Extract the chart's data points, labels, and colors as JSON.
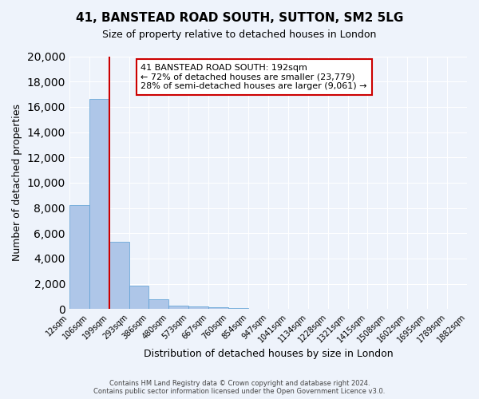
{
  "title": "41, BANSTEAD ROAD SOUTH, SUTTON, SM2 5LG",
  "subtitle": "Size of property relative to detached houses in London",
  "xlabel": "Distribution of detached houses by size in London",
  "ylabel": "Number of detached properties",
  "bar_values": [
    8200,
    16600,
    5300,
    1850,
    750,
    300,
    200,
    150,
    100,
    0,
    0,
    0,
    0,
    0,
    0,
    0,
    0,
    0,
    0,
    0
  ],
  "bar_labels": [
    "12sqm",
    "106sqm",
    "199sqm",
    "293sqm",
    "386sqm",
    "480sqm",
    "573sqm",
    "667sqm",
    "760sqm",
    "854sqm",
    "947sqm",
    "1041sqm",
    "1134sqm",
    "1228sqm",
    "1321sqm",
    "1415sqm",
    "1508sqm",
    "1602sqm",
    "1695sqm",
    "1789sqm",
    "1882sqm"
  ],
  "bar_color": "#aec6e8",
  "bar_edge_color": "#5a9fd4",
  "property_line_x": 2,
  "property_line_color": "#cc0000",
  "ylim": [
    0,
    20000
  ],
  "yticks": [
    0,
    2000,
    4000,
    6000,
    8000,
    10000,
    12000,
    14000,
    16000,
    18000,
    20000
  ],
  "annotation_box_text": "41 BANSTEAD ROAD SOUTH: 192sqm\n← 72% of detached houses are smaller (23,779)\n28% of semi-detached houses are larger (9,061) →",
  "annotation_box_color": "#ffffff",
  "annotation_box_edge_color": "#cc0000",
  "footer_line1": "Contains HM Land Registry data © Crown copyright and database right 2024.",
  "footer_line2": "Contains public sector information licensed under the Open Government Licence v3.0.",
  "background_color": "#eef3fb",
  "grid_color": "#ffffff"
}
